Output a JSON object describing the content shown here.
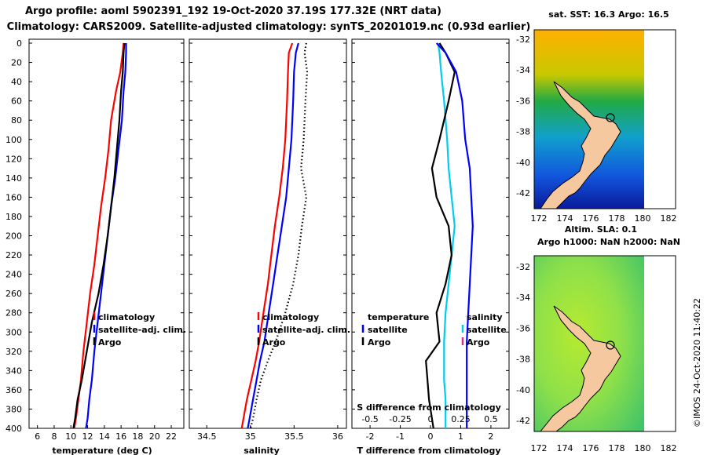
{
  "header": {
    "title_line1": "Argo profile: aoml 5902391_192 19-Oct-2020 37.19S 177.32E (NRT data)",
    "title_line2": "Climatology: CARS2009. Satellite-adjusted climatology: synTS_20201019.nc (0.93d earlier)"
  },
  "chart_data": [
    {
      "type": "line",
      "name": "temperature",
      "xlabel": "temperature (deg C)",
      "ylabel": "",
      "xlim": [
        5,
        23.5
      ],
      "ylim": [
        400,
        0
      ],
      "xticks": [
        6,
        8,
        10,
        12,
        14,
        16,
        18,
        20,
        22
      ],
      "yticks": [
        0,
        20,
        40,
        60,
        80,
        100,
        120,
        140,
        160,
        180,
        200,
        220,
        240,
        260,
        280,
        300,
        320,
        340,
        360,
        380,
        400
      ],
      "legend": [
        "climatology",
        "satellite-adj. clim.",
        "Argo"
      ],
      "series": [
        {
          "name": "climatology",
          "color": "#ff0000",
          "x": [
            16.3,
            16.2,
            15.9,
            15.4,
            14.8,
            14.5,
            14.1,
            13.6,
            13.2,
            12.8,
            12.3,
            11.9,
            11.5,
            11.2,
            10.9,
            10.6,
            10.4
          ],
          "y": [
            0,
            10,
            30,
            50,
            80,
            110,
            140,
            170,
            200,
            230,
            260,
            290,
            320,
            350,
            370,
            390,
            400
          ]
        },
        {
          "name": "satellite-adj. clim.",
          "color": "#0000ff",
          "x": [
            16.6,
            16.6,
            16.5,
            16.3,
            16.1,
            15.7,
            15.3,
            14.8,
            14.4,
            14.0,
            13.6,
            13.2,
            12.8,
            12.5,
            12.2,
            12.0,
            11.8
          ],
          "y": [
            0,
            10,
            30,
            50,
            80,
            110,
            140,
            170,
            200,
            230,
            260,
            290,
            320,
            350,
            370,
            390,
            400
          ]
        },
        {
          "name": "Argo",
          "color": "#000000",
          "x": [
            16.4,
            16.3,
            16.2,
            16.0,
            15.8,
            15.5,
            15.2,
            14.8,
            14.4,
            13.9,
            13.3,
            12.5,
            11.9,
            11.3,
            10.8,
            10.5,
            10.3
          ],
          "y": [
            0,
            10,
            30,
            50,
            80,
            110,
            140,
            170,
            200,
            230,
            260,
            290,
            320,
            350,
            370,
            390,
            400
          ]
        }
      ]
    },
    {
      "type": "line",
      "name": "salinity",
      "xlabel": "salinity",
      "xlim": [
        34.3,
        36.1
      ],
      "ylim": [
        400,
        0
      ],
      "xticks": [
        34.5,
        35,
        35.5,
        36
      ],
      "legend": [
        "climatology",
        "satellite-adj. clim.",
        "Argo"
      ],
      "series": [
        {
          "name": "climatology",
          "color": "#ff0000",
          "x": [
            35.48,
            35.44,
            35.43,
            35.42,
            35.4,
            35.37,
            35.33,
            35.28,
            35.24,
            35.2,
            35.15,
            35.1,
            35.06,
            35.01,
            34.96,
            34.92,
            34.9
          ],
          "y": [
            0,
            10,
            30,
            60,
            100,
            130,
            160,
            190,
            220,
            250,
            280,
            310,
            330,
            350,
            370,
            390,
            400
          ]
        },
        {
          "name": "satellite-adj. clim.",
          "color": "#0000ff",
          "x": [
            35.55,
            35.52,
            35.5,
            35.49,
            35.47,
            35.44,
            35.41,
            35.36,
            35.31,
            35.26,
            35.21,
            35.16,
            35.11,
            35.07,
            35.03,
            34.99,
            34.97
          ],
          "y": [
            0,
            10,
            30,
            60,
            100,
            130,
            160,
            190,
            220,
            250,
            280,
            310,
            330,
            350,
            370,
            390,
            400
          ]
        },
        {
          "name": "Argo",
          "color": "#000000",
          "x": [
            35.64,
            35.62,
            35.65,
            35.63,
            35.61,
            35.58,
            35.64,
            35.59,
            35.55,
            35.49,
            35.4,
            35.29,
            35.2,
            35.12,
            35.07,
            35.03,
            35.0
          ],
          "y": [
            0,
            10,
            30,
            60,
            100,
            130,
            160,
            190,
            220,
            250,
            280,
            310,
            330,
            350,
            370,
            390,
            400
          ]
        }
      ]
    },
    {
      "type": "line",
      "name": "difference from climatology",
      "xlabel": "T difference from climatology",
      "xlabel2": "S difference from climatology",
      "xlim": [
        -2.6,
        2.6
      ],
      "ylim": [
        400,
        0
      ],
      "xticks": [
        -2,
        -1,
        0,
        1,
        2
      ],
      "xticks2": [
        "-0.5",
        "-0.25",
        "0",
        "0.25",
        "0.5"
      ],
      "legend_left_title": "temperature",
      "legend_right_title": "salinity",
      "legend": [
        "satellite",
        "Argo"
      ],
      "series": [
        {
          "name": "temperature satellite",
          "color": "#00ccee",
          "x": [
            0.25,
            0.3,
            0.35,
            0.45,
            0.55,
            0.6,
            0.7,
            0.8,
            0.7,
            0.6,
            0.5,
            0.45,
            0.45,
            0.45,
            0.5,
            0.5,
            0.5
          ],
          "y": [
            0,
            10,
            30,
            60,
            100,
            130,
            160,
            190,
            220,
            250,
            280,
            310,
            330,
            350,
            370,
            390,
            400
          ]
        },
        {
          "name": "temperature Argo",
          "color": "#000000",
          "x": [
            0.3,
            0.5,
            0.8,
            0.6,
            0.3,
            0.05,
            0.2,
            0.6,
            0.7,
            0.5,
            0.2,
            0.3,
            -0.15,
            -0.1,
            -0.05,
            0.05,
            0.1
          ],
          "y": [
            0,
            10,
            30,
            60,
            100,
            130,
            160,
            190,
            220,
            250,
            280,
            310,
            330,
            350,
            370,
            390,
            400
          ]
        },
        {
          "name": "salinity satellite",
          "color": "#0000ff",
          "x": [
            0.2,
            0.5,
            0.85,
            1.05,
            1.15,
            1.3,
            1.35,
            1.4,
            1.35,
            1.3,
            1.25,
            1.2,
            1.2,
            1.2,
            1.2,
            1.2,
            1.2
          ],
          "y": [
            0,
            10,
            30,
            60,
            100,
            130,
            160,
            190,
            220,
            250,
            280,
            310,
            330,
            350,
            370,
            390,
            400
          ]
        }
      ]
    }
  ],
  "maps": {
    "top_title": "sat. SST: 16.3 Argo: 16.5",
    "mid_title1": "Altim. SLA: 0.1",
    "mid_title2": "Argo h1000: NaN h2000: NaN",
    "lat_ticks": [
      "-32",
      "-34",
      "-36",
      "-38",
      "-40",
      "-42"
    ],
    "lon_ticks": [
      "172",
      "174",
      "176",
      "178",
      "180",
      "182"
    ]
  },
  "credit": "©IMOS 24-Oct-2020 11:40:22"
}
